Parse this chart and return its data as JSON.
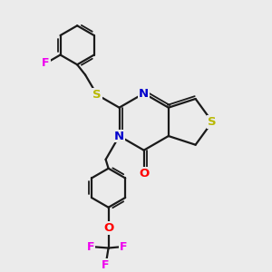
{
  "bg_color": "#ebebeb",
  "bond_color": "#1a1a1a",
  "S_color": "#b8b800",
  "N_color": "#0000cc",
  "O_color": "#ff0000",
  "F_color": "#ee00ee",
  "figsize": [
    3.0,
    3.0
  ],
  "dpi": 100,
  "xlim": [
    0,
    10
  ],
  "ylim": [
    0,
    10
  ]
}
